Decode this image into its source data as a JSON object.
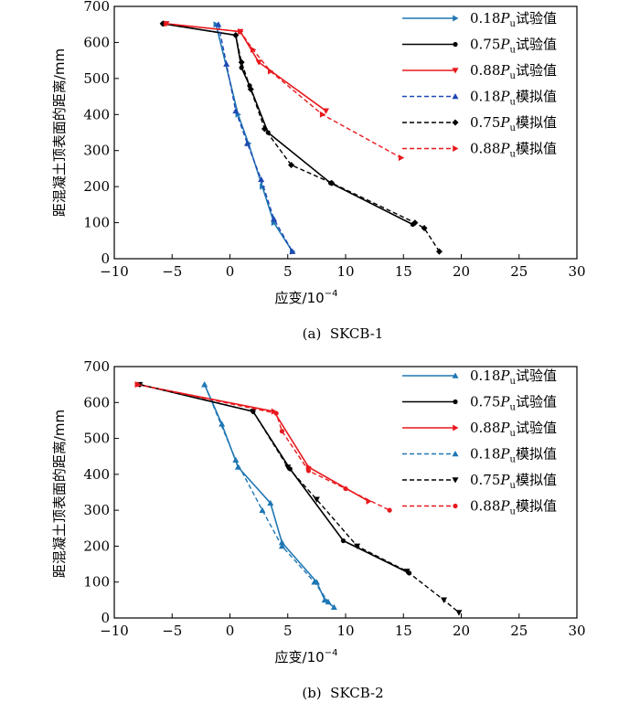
{
  "chart_data": [
    {
      "type": "line",
      "caption": "(a)  SKCB-1",
      "xlabel": "应变/10",
      "xlabel_exp": "−4",
      "ylabel": "距混凝土顶表面的距离/mm",
      "xlim": [
        -10,
        30
      ],
      "ylim": [
        0,
        700
      ],
      "xticks": [
        -10,
        -5,
        0,
        5,
        10,
        15,
        20,
        25,
        30
      ],
      "yticks": [
        0,
        100,
        200,
        300,
        400,
        500,
        600,
        700
      ],
      "xtick_labels": [
        "−10",
        "−5",
        "0",
        "5",
        "10",
        "15",
        "20",
        "25",
        "30"
      ],
      "ytick_labels": [
        "0",
        "100",
        "200",
        "300",
        "400",
        "500",
        "600",
        "700"
      ],
      "legend_position": "top-right",
      "series": [
        {
          "name_pre": "0.18",
          "name_sym": "P",
          "name_sub": "u",
          "name_post": "试验值",
          "color": "#1f77b4",
          "style": "solid",
          "marker": "tri-right",
          "x": [
            -1.2,
            0.7,
            1.6,
            2.8,
            3.8,
            5.4
          ],
          "y": [
            650,
            400,
            320,
            200,
            100,
            20
          ]
        },
        {
          "name_pre": "0.75",
          "name_sym": "P",
          "name_sub": "u",
          "name_post": "试验值",
          "color": "#000000",
          "style": "solid",
          "marker": "dot",
          "x": [
            -5.8,
            0.5,
            1.0,
            1.7,
            3.3,
            8.7,
            15.8
          ],
          "y": [
            652,
            620,
            530,
            480,
            350,
            210,
            95
          ]
        },
        {
          "name_pre": "0.88",
          "name_sym": "P",
          "name_sub": "u",
          "name_post": "试验值",
          "color": "#e8191e",
          "style": "solid",
          "marker": "tri-down",
          "x": [
            -5.5,
            0.9,
            2.5,
            8.3
          ],
          "y": [
            652,
            630,
            545,
            410
          ]
        },
        {
          "name_pre": "0.18",
          "name_sym": "P",
          "name_sub": "u",
          "name_post": "模拟值",
          "color": "#1f49b4",
          "style": "dashed",
          "marker": "tri-up",
          "x": [
            -1.0,
            -0.3,
            0.5,
            1.5,
            2.7,
            3.8,
            5.4
          ],
          "y": [
            650,
            540,
            410,
            320,
            220,
            110,
            20
          ]
        },
        {
          "name_pre": "0.75",
          "name_sym": "P",
          "name_sub": "u",
          "name_post": "模拟值",
          "color": "#000000",
          "style": "dashed",
          "marker": "diamond",
          "x": [
            -5.8,
            0.5,
            1.0,
            1.8,
            3.0,
            5.3,
            8.8,
            16.0,
            16.8,
            18.1
          ],
          "y": [
            652,
            620,
            545,
            470,
            360,
            260,
            210,
            100,
            85,
            20
          ]
        },
        {
          "name_pre": "0.88",
          "name_sym": "P",
          "name_sub": "u",
          "name_post": "模拟值",
          "color": "#e8191e",
          "style": "dashed",
          "marker": "tri-right",
          "x": [
            -5.5,
            0.9,
            2.0,
            3.5,
            8.0,
            14.8
          ],
          "y": [
            652,
            630,
            580,
            520,
            400,
            280
          ]
        }
      ]
    },
    {
      "type": "line",
      "caption": "(b)  SKCB-2",
      "xlabel": "应变/10",
      "xlabel_exp": "−4",
      "ylabel": "距混凝土顶表面的距离/mm",
      "xlim": [
        -10,
        30
      ],
      "ylim": [
        0,
        700
      ],
      "xticks": [
        -10,
        -5,
        0,
        5,
        10,
        15,
        20,
        25,
        30
      ],
      "yticks": [
        0,
        100,
        200,
        300,
        400,
        500,
        600,
        700
      ],
      "xtick_labels": [
        "−10",
        "−5",
        "0",
        "5",
        "10",
        "15",
        "20",
        "25",
        "30"
      ],
      "ytick_labels": [
        "0",
        "100",
        "200",
        "300",
        "400",
        "500",
        "600",
        "700"
      ],
      "legend_position": "top-right",
      "series": [
        {
          "name_pre": "0.18",
          "name_sym": "P",
          "name_sub": "u",
          "name_post": "试验值",
          "color": "#1f77b4",
          "style": "solid",
          "marker": "tri-up",
          "x": [
            -2.2,
            -0.7,
            0.7,
            3.5,
            4.5,
            7.5,
            8.2,
            9.0
          ],
          "y": [
            650,
            540,
            420,
            320,
            210,
            100,
            50,
            30
          ]
        },
        {
          "name_pre": "0.75",
          "name_sym": "P",
          "name_sub": "u",
          "name_post": "试验值",
          "color": "#000000",
          "style": "solid",
          "marker": "dot",
          "x": [
            -7.8,
            2.0,
            5.2,
            9.8,
            15.5
          ],
          "y": [
            650,
            575,
            415,
            215,
            125
          ]
        },
        {
          "name_pre": "0.88",
          "name_sym": "P",
          "name_sub": "u",
          "name_post": "试验值",
          "color": "#e8191e",
          "style": "solid",
          "marker": "tri-right",
          "x": [
            -8.0,
            3.8,
            6.8,
            12.0
          ],
          "y": [
            650,
            575,
            420,
            325
          ]
        },
        {
          "name_pre": "0.18",
          "name_sym": "P",
          "name_sub": "u",
          "name_post": "模拟值",
          "color": "#1f77b4",
          "style": "dashed",
          "marker": "tri-up",
          "x": [
            -2.2,
            0.5,
            2.8,
            4.5,
            7.3,
            8.5
          ],
          "y": [
            650,
            440,
            300,
            200,
            100,
            45
          ]
        },
        {
          "name_pre": "0.75",
          "name_sym": "P",
          "name_sub": "u",
          "name_post": "模拟值",
          "color": "#000000",
          "style": "dashed",
          "marker": "tri-down",
          "x": [
            -7.8,
            2.0,
            5.0,
            7.5,
            11.0,
            15.3,
            18.5,
            19.8
          ],
          "y": [
            650,
            575,
            420,
            330,
            200,
            130,
            50,
            15
          ]
        },
        {
          "name_pre": "0.88",
          "name_sym": "P",
          "name_sub": "u",
          "name_post": "模拟值",
          "color": "#e8191e",
          "style": "dashed",
          "marker": "dot",
          "x": [
            -8.0,
            4.0,
            4.5,
            6.8,
            10.0,
            13.8
          ],
          "y": [
            650,
            570,
            520,
            410,
            360,
            300
          ]
        }
      ]
    }
  ]
}
